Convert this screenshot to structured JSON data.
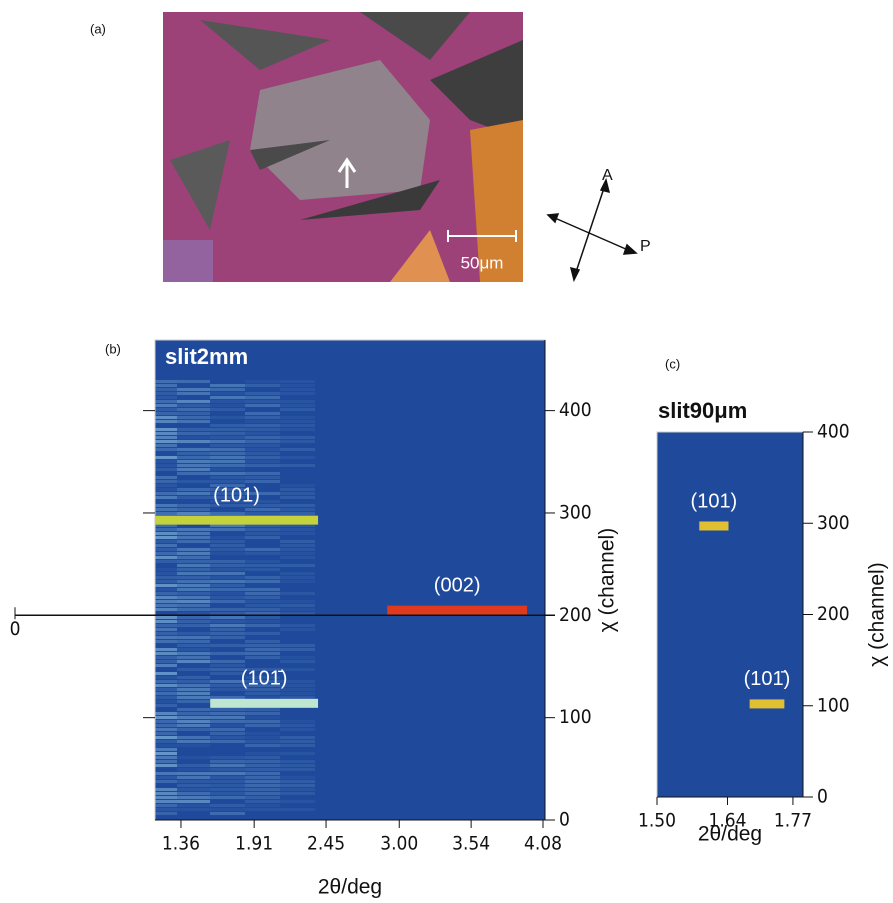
{
  "panel_a": {
    "label": "(a)",
    "scale_bar": "50μm",
    "analyzer": "A",
    "polarizer": "P"
  },
  "chart_data": [
    {
      "type": "heatmap",
      "panel_label": "(b)",
      "title": "slit2mm",
      "title_color": "#ffffff",
      "x_label": "2θ/deg",
      "y_label": "χ (channel)",
      "xlim": [
        1.165,
        4.095
      ],
      "ylim": [
        0,
        469
      ],
      "xticks": [
        1.36,
        1.91,
        2.45,
        {
          "value": 3,
          "label": "3.00"
        },
        3.54,
        4.08
      ],
      "yticks": [
        0,
        100,
        200,
        300,
        400
      ],
      "background": "#1f4a9c",
      "reference_line": {
        "value": 200,
        "label": "0"
      },
      "streaks": [
        {
          "label": "(101)",
          "x": [
            1.165,
            2.39
          ],
          "y": 293,
          "color": "#c5d23c"
        },
        {
          "label": "(002)",
          "x": [
            2.91,
            3.96
          ],
          "y": 205,
          "color": "#e03a1e"
        },
        {
          "label": "(101̄)",
          "x": [
            1.58,
            2.39
          ],
          "y": 114,
          "color": "#bfe6d0"
        }
      ]
    },
    {
      "type": "heatmap",
      "panel_label": "(c)",
      "title": "slit90μm",
      "title_color": "#111111",
      "x_label": "2θ/deg",
      "y_label": "χ (channel)",
      "xlim": [
        1.5,
        1.79
      ],
      "ylim": [
        0,
        400
      ],
      "xticks": [
        {
          "value": 1.5,
          "label": "1.50"
        },
        1.64,
        1.77
      ],
      "yticks": [
        0,
        100,
        200,
        300,
        400
      ],
      "background": "#1f4a9c",
      "streaks": [
        {
          "label": "(101)",
          "x": [
            1.584,
            1.642
          ],
          "y": 297,
          "color": "#e0c030"
        },
        {
          "label": "(101̄)",
          "x": [
            1.684,
            1.753
          ],
          "y": 102,
          "color": "#e0c030"
        }
      ]
    }
  ]
}
